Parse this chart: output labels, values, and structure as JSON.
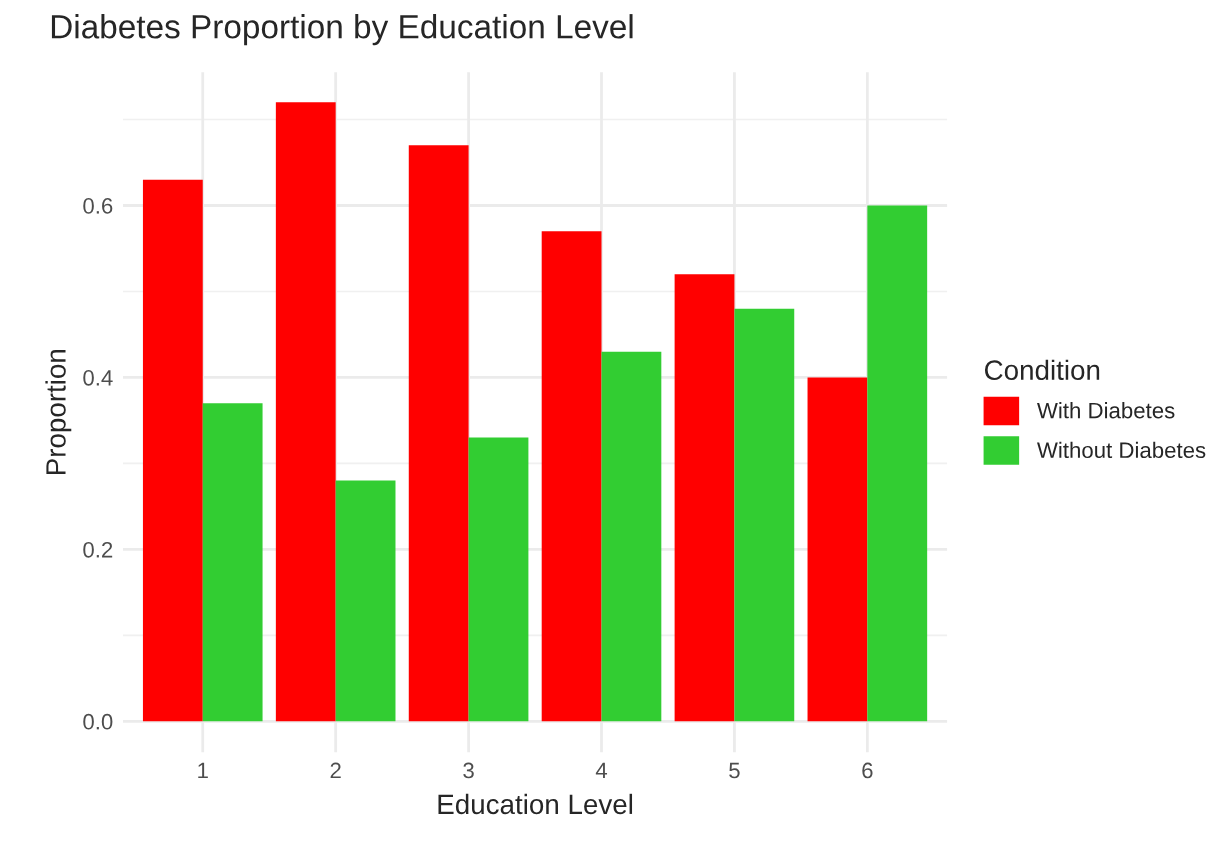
{
  "chart_data": {
    "type": "bar",
    "title": "Diabetes Proportion by Education Level",
    "xlabel": "Education Level",
    "ylabel": "Proportion",
    "legend_title": "Condition",
    "categories": [
      "1",
      "2",
      "3",
      "4",
      "5",
      "6"
    ],
    "series": [
      {
        "name": "With Diabetes",
        "color": "#ff0000",
        "values": [
          0.63,
          0.72,
          0.67,
          0.57,
          0.52,
          0.4
        ]
      },
      {
        "name": "Without Diabetes",
        "color": "#32cd32",
        "values": [
          0.37,
          0.28,
          0.33,
          0.43,
          0.48,
          0.6
        ]
      }
    ],
    "ylim": [
      -0.036,
      0.755
    ],
    "yticks": [
      {
        "value": 0,
        "label": "0.0"
      },
      0.2,
      0.4,
      0.6
    ],
    "grid": true,
    "legend": "right"
  }
}
